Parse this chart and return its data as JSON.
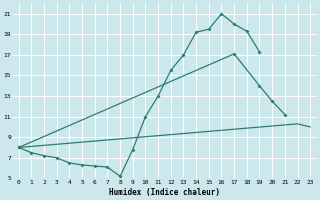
{
  "xlabel": "Humidex (Indice chaleur)",
  "bg_color": "#cce8ec",
  "grid_color": "#ffffff",
  "line_color": "#2e7d6e",
  "xlim": [
    -0.5,
    23.5
  ],
  "ylim": [
    5,
    22
  ],
  "xticks": [
    0,
    1,
    2,
    3,
    4,
    5,
    6,
    7,
    8,
    9,
    10,
    11,
    12,
    13,
    14,
    15,
    16,
    17,
    18,
    19,
    20,
    21,
    22,
    23
  ],
  "yticks": [
    5,
    7,
    9,
    11,
    13,
    15,
    17,
    19,
    21
  ],
  "line1_x": [
    0,
    1,
    2,
    3,
    4,
    5,
    6,
    7,
    8,
    9,
    10,
    11,
    12,
    13,
    14,
    15,
    16,
    17,
    18,
    19
  ],
  "line1_y": [
    8.0,
    7.5,
    7.2,
    7.0,
    6.5,
    6.3,
    6.2,
    6.1,
    5.2,
    7.8,
    11,
    13,
    15.5,
    17,
    19.2,
    19.5,
    21,
    20,
    19.3,
    17.3
  ],
  "line2_x": [
    0,
    17,
    19,
    20,
    21
  ],
  "line2_y": [
    8.0,
    17.1,
    14.0,
    12.5,
    11.2
  ],
  "line3_x": [
    0,
    22,
    23
  ],
  "line3_y": [
    8.0,
    10.3,
    10.0
  ],
  "marker_size": 2.0,
  "linewidth": 0.9,
  "xlabel_fontsize": 5.5,
  "tick_fontsize": 4.5
}
